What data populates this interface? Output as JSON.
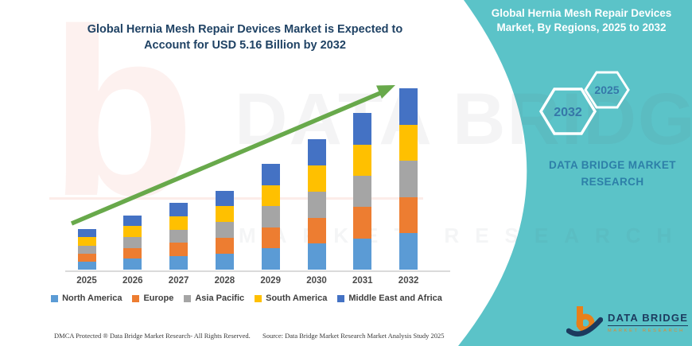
{
  "title": {
    "line1": "Global Hernia Mesh Repair Devices Market is Expected to",
    "line2": "Account for USD 5.16 Billion by 2032"
  },
  "side_panel": {
    "heading_line1": "Global Hernia Mesh Repair Devices",
    "heading_line2": "Market, By Regions, 2025 to 2032",
    "hexagons": [
      {
        "label": "2032"
      },
      {
        "label": "2025"
      }
    ],
    "brand_line1": "DATA BRIDGE MARKET",
    "brand_line2": "RESEARCH"
  },
  "logo": {
    "title": "DATA BRIDGE",
    "subtitle": "MARKET RESEARCH"
  },
  "watermark": {
    "big_letter": "b",
    "line1": "DATA BRIDGE",
    "line2": "MARKET RESEARCH"
  },
  "footer": {
    "left": "DMCA Protected ® Data Bridge Market Research-  All Rights Reserved.",
    "right": "Source: Data Bridge Market Research  Market Analysis Study 2025"
  },
  "colors": {
    "teal": "#5BC3C8",
    "title_navy": "#1F4264",
    "arrow_green": "#68A94B",
    "hex_label_blue": "#3677A8"
  },
  "chart_data": {
    "type": "bar",
    "stacked": true,
    "title": "Global Hernia Mesh Repair Devices Market is Expected to Account for USD 5.16 Billion by 2032",
    "unit": "USD Billion",
    "categories": [
      "2025",
      "2026",
      "2027",
      "2028",
      "2029",
      "2030",
      "2031",
      "2032"
    ],
    "totals": [
      1.15,
      1.55,
      1.9,
      2.25,
      3.0,
      3.7,
      4.45,
      5.16
    ],
    "series": [
      {
        "name": "North America",
        "color": "#5B9BD5",
        "values": [
          0.23,
          0.31,
          0.38,
          0.45,
          0.6,
          0.74,
          0.89,
          1.032
        ]
      },
      {
        "name": "Europe",
        "color": "#ED7D31",
        "values": [
          0.23,
          0.31,
          0.38,
          0.45,
          0.6,
          0.74,
          0.89,
          1.032
        ]
      },
      {
        "name": "Asia Pacific",
        "color": "#A5A5A5",
        "values": [
          0.23,
          0.31,
          0.38,
          0.45,
          0.6,
          0.74,
          0.89,
          1.032
        ]
      },
      {
        "name": "South America",
        "color": "#FFC000",
        "values": [
          0.23,
          0.31,
          0.38,
          0.45,
          0.6,
          0.74,
          0.89,
          1.032
        ]
      },
      {
        "name": "Middle East and Africa",
        "color": "#4472C4",
        "values": [
          0.23,
          0.31,
          0.38,
          0.45,
          0.6,
          0.74,
          0.89,
          1.032
        ]
      }
    ],
    "legend_position": "bottom",
    "gridlines": false,
    "y_axis_visible": false,
    "annotations": {
      "trend_arrow": "upward"
    }
  }
}
